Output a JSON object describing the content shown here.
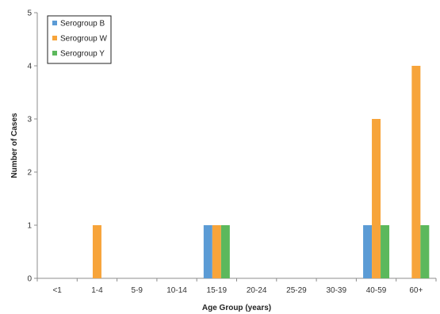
{
  "chart_data": {
    "type": "bar",
    "title": "",
    "xlabel": "Age Group (years)",
    "ylabel": "Number of Cases",
    "categories": [
      "<1",
      "1-4",
      "5-9",
      "10-14",
      "15-19",
      "20-24",
      "25-29",
      "30-39",
      "40-59",
      "60+"
    ],
    "ylim": [
      0,
      5
    ],
    "yticks": [
      0,
      1,
      2,
      3,
      4,
      5
    ],
    "grid": false,
    "legend_position": "top-left",
    "series": [
      {
        "name": "Serogroup B",
        "color": "#5b9bd5",
        "values": [
          0,
          0,
          0,
          0,
          1,
          0,
          0,
          0,
          1,
          0
        ]
      },
      {
        "name": "Serogroup W",
        "color": "#f7a43a",
        "values": [
          0,
          1,
          0,
          0,
          1,
          0,
          0,
          0,
          3,
          4
        ]
      },
      {
        "name": "Serogroup Y",
        "color": "#5cb85c",
        "values": [
          0,
          0,
          0,
          0,
          1,
          0,
          0,
          0,
          1,
          1
        ]
      }
    ]
  }
}
